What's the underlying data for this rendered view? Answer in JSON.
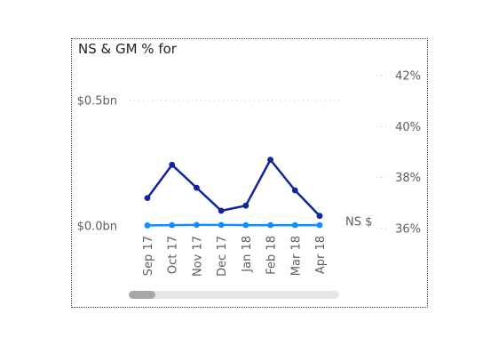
{
  "visual": {
    "title": "NS & GM % for"
  },
  "chart_data": {
    "type": "line",
    "title": "NS & GM % for",
    "categories": [
      "Sep 17",
      "Oct 17",
      "Nov 17",
      "Dec 17",
      "Jan 18",
      "Feb 18",
      "Mar 18",
      "Apr 18"
    ],
    "series": [
      {
        "name": "NS $",
        "axis": "left",
        "color": "#118dff",
        "values": [
          0.002,
          0.003,
          0.004,
          0.004,
          0.003,
          0.003,
          0.003,
          0.003
        ]
      },
      {
        "axis": "right",
        "color": "#12239e",
        "values": [
          37.2,
          38.5,
          37.6,
          36.7,
          36.9,
          38.7,
          37.5,
          36.5
        ]
      }
    ],
    "y_left": {
      "ticks": [
        0.0,
        0.5
      ],
      "tick_labels": [
        "$0.0bn",
        "$0.5bn"
      ],
      "range": [
        0.0,
        0.5
      ]
    },
    "y_right": {
      "ticks": [
        36,
        38,
        40,
        42
      ],
      "tick_labels": [
        "36%",
        "38%",
        "40%",
        "42%"
      ],
      "range": [
        36,
        42
      ]
    },
    "grid": true,
    "legend": "none",
    "series_label": "NS $"
  }
}
